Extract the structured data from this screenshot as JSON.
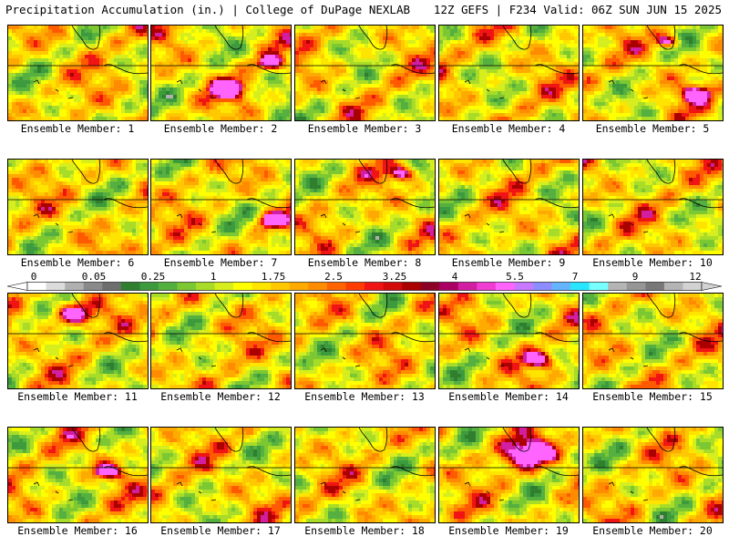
{
  "header": {
    "left": "Precipitation Accumulation (in.) | College of DuPage NEXLAB",
    "right": "12Z GEFS | F234 Valid: 06Z SUN JUN 15 2025"
  },
  "colorbar": {
    "labels": [
      "0",
      "0.05",
      "0.25",
      "1",
      "1.75",
      "2.5",
      "3.25",
      "4",
      "5.5",
      "7",
      "9",
      "12"
    ],
    "colors": [
      "#ffffff",
      "#dcdcdc",
      "#b0b0b0",
      "#8a8a8a",
      "#6e6e6e",
      "#2f7f2f",
      "#3d9a3d",
      "#55b040",
      "#7cc832",
      "#a8dc28",
      "#d6ee1e",
      "#ffff00",
      "#ffe400",
      "#ffc800",
      "#ffaa00",
      "#ff8c00",
      "#ff6400",
      "#ff3c00",
      "#f01414",
      "#d20a0a",
      "#aa0000",
      "#8c0028",
      "#aa0064",
      "#d21ea0",
      "#f03cd2",
      "#ff64ff",
      "#c878ff",
      "#8c8cff",
      "#64b4ff",
      "#28e6ff",
      "#78ffff",
      "#b4b4b4",
      "#969696",
      "#787878",
      "#b4b4b4",
      "#d2d2d2"
    ]
  },
  "panels": [
    {
      "member": 1,
      "label": "Ensemble Member: 1"
    },
    {
      "member": 2,
      "label": "Ensemble Member: 2"
    },
    {
      "member": 3,
      "label": "Ensemble Member: 3"
    },
    {
      "member": 4,
      "label": "Ensemble Member: 4"
    },
    {
      "member": 5,
      "label": "Ensemble Member: 5"
    },
    {
      "member": 6,
      "label": "Ensemble Member: 6"
    },
    {
      "member": 7,
      "label": "Ensemble Member: 7"
    },
    {
      "member": 8,
      "label": "Ensemble Member: 8"
    },
    {
      "member": 9,
      "label": "Ensemble Member: 9"
    },
    {
      "member": 10,
      "label": "Ensemble Member: 10"
    },
    {
      "member": 11,
      "label": "Ensemble Member: 11"
    },
    {
      "member": 12,
      "label": "Ensemble Member: 12"
    },
    {
      "member": 13,
      "label": "Ensemble Member: 13"
    },
    {
      "member": 14,
      "label": "Ensemble Member: 14"
    },
    {
      "member": 15,
      "label": "Ensemble Member: 15"
    },
    {
      "member": 16,
      "label": "Ensemble Member: 16"
    },
    {
      "member": 17,
      "label": "Ensemble Member: 17"
    },
    {
      "member": 18,
      "label": "Ensemble Member: 18"
    },
    {
      "member": 19,
      "label": "Ensemble Member: 19"
    },
    {
      "member": 20,
      "label": "Ensemble Member: 20"
    }
  ]
}
